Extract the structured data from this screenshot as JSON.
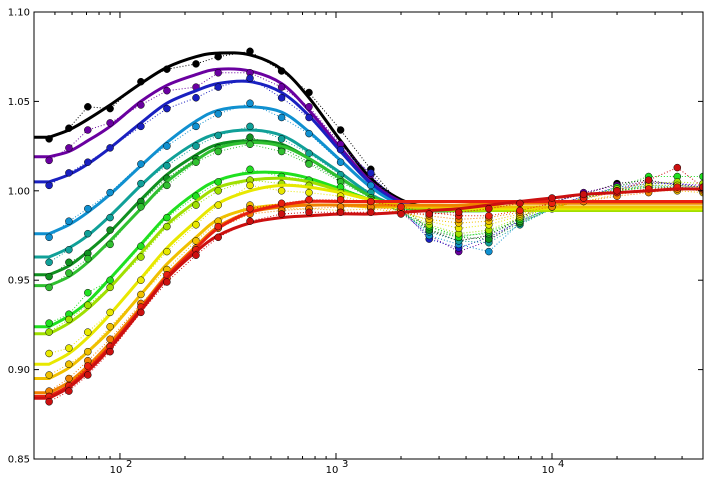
{
  "chart_data": {
    "type": "line",
    "title": "",
    "xlabel": "",
    "ylabel": "",
    "xscale": "log",
    "xlim": [
      40,
      50000
    ],
    "ylim": [
      0.85,
      1.1
    ],
    "grid": false,
    "legend": "none",
    "x_ticks": [
      {
        "value": 100,
        "base": "10",
        "exp": "2"
      },
      {
        "value": 1000,
        "base": "10",
        "exp": "3"
      },
      {
        "value": 10000,
        "base": "10",
        "exp": "4"
      }
    ],
    "y_ticks": [
      {
        "value": 0.85,
        "label": "0.85"
      },
      {
        "value": 0.9,
        "label": "0.90"
      },
      {
        "value": 0.95,
        "label": "0.95"
      },
      {
        "value": 1.0,
        "label": "1.00"
      },
      {
        "value": 1.05,
        "label": "1.05"
      },
      {
        "value": 1.1,
        "label": "1.10"
      }
    ],
    "sample_x": [
      47,
      58,
      71,
      90,
      125,
      165,
      225,
      285,
      400,
      560,
      750,
      1050,
      1450,
      2000,
      2700,
      3700,
      5100,
      7100,
      10000,
      14000,
      20000,
      28000,
      38000,
      50000
    ],
    "series": [
      {
        "color": "#000000",
        "fit": [
          1.03,
          1.034,
          1.04,
          1.048,
          1.06,
          1.069,
          1.075,
          1.077,
          1.076,
          1.068,
          1.052,
          1.028,
          1.007,
          0.995,
          0.991,
          0.99,
          0.99,
          0.99,
          0.99,
          0.99,
          0.99,
          0.99,
          0.99,
          0.99
        ],
        "points": [
          1.029,
          1.035,
          1.047,
          1.046,
          1.061,
          1.068,
          1.071,
          1.075,
          1.078,
          1.067,
          1.055,
          1.034,
          1.012,
          0.992,
          0.978,
          0.972,
          0.975,
          0.985,
          0.994,
          0.998,
          1.004,
          1.006,
          1.003,
          1.002
        ]
      },
      {
        "color": "#6a00a0",
        "fit": [
          1.019,
          1.022,
          1.028,
          1.036,
          1.05,
          1.059,
          1.065,
          1.068,
          1.067,
          1.06,
          1.045,
          1.024,
          1.005,
          0.994,
          0.99,
          0.989,
          0.989,
          0.989,
          0.989,
          0.989,
          0.989,
          0.989,
          0.989,
          0.989
        ],
        "points": [
          1.017,
          1.024,
          1.034,
          1.038,
          1.048,
          1.056,
          1.058,
          1.066,
          1.066,
          1.058,
          1.047,
          1.026,
          1.009,
          0.988,
          0.975,
          0.966,
          0.972,
          0.984,
          0.993,
          0.999,
          1.003,
          1.005,
          1.004,
          1.003
        ]
      },
      {
        "color": "#1a20c0",
        "fit": [
          1.005,
          1.009,
          1.015,
          1.024,
          1.038,
          1.049,
          1.056,
          1.06,
          1.061,
          1.055,
          1.042,
          1.022,
          1.004,
          0.993,
          0.99,
          0.989,
          0.989,
          0.989,
          0.989,
          0.989,
          0.989,
          0.989,
          0.989,
          0.989
        ],
        "points": [
          1.003,
          1.01,
          1.016,
          1.024,
          1.036,
          1.046,
          1.052,
          1.058,
          1.063,
          1.052,
          1.041,
          1.023,
          1.01,
          0.99,
          0.973,
          0.968,
          0.974,
          0.983,
          0.991,
          0.997,
          1.002,
          1.004,
          1.004,
          1.002
        ]
      },
      {
        "color": "#1090d0",
        "fit": [
          0.976,
          0.981,
          0.988,
          0.998,
          1.014,
          1.027,
          1.039,
          1.045,
          1.047,
          1.044,
          1.033,
          1.017,
          1.002,
          0.992,
          0.99,
          0.989,
          0.989,
          0.989,
          0.989,
          0.989,
          0.989,
          0.989,
          0.989,
          0.989
        ],
        "points": [
          0.974,
          0.983,
          0.99,
          0.999,
          1.015,
          1.025,
          1.036,
          1.043,
          1.049,
          1.041,
          1.032,
          1.016,
          1.003,
          0.99,
          0.975,
          0.97,
          0.966,
          0.982,
          0.99,
          0.997,
          1.001,
          1.003,
          1.003,
          1.001
        ]
      },
      {
        "color": "#10a098",
        "fit": [
          0.963,
          0.968,
          0.975,
          0.986,
          1.003,
          1.016,
          1.027,
          1.032,
          1.034,
          1.031,
          1.022,
          1.01,
          0.998,
          0.991,
          0.989,
          0.989,
          0.989,
          0.989,
          0.989,
          0.989,
          0.989,
          0.989,
          0.989,
          0.989
        ],
        "points": [
          0.96,
          0.967,
          0.976,
          0.985,
          1.004,
          1.014,
          1.025,
          1.031,
          1.036,
          1.029,
          1.021,
          1.009,
          0.999,
          0.988,
          0.977,
          0.972,
          0.971,
          0.981,
          0.99,
          0.996,
          1.0,
          1.003,
          1.002,
          1.001
        ]
      },
      {
        "color": "#109020",
        "fit": [
          0.953,
          0.958,
          0.966,
          0.977,
          0.995,
          1.009,
          1.02,
          1.026,
          1.028,
          1.026,
          1.018,
          1.007,
          0.997,
          0.991,
          0.989,
          0.989,
          0.989,
          0.989,
          0.989,
          0.989,
          0.989,
          0.989,
          0.989,
          0.989
        ],
        "points": [
          0.952,
          0.96,
          0.965,
          0.978,
          0.994,
          1.007,
          1.018,
          1.024,
          1.03,
          1.024,
          1.016,
          1.006,
          0.996,
          0.988,
          0.978,
          0.974,
          0.973,
          0.982,
          0.99,
          0.996,
          1.0,
          1.002,
          1.002,
          1.001
        ]
      },
      {
        "color": "#30c030",
        "fit": [
          0.947,
          0.952,
          0.96,
          0.972,
          0.99,
          1.005,
          1.017,
          1.024,
          1.027,
          1.025,
          1.018,
          1.007,
          0.997,
          0.991,
          0.989,
          0.989,
          0.989,
          0.989,
          0.989,
          0.989,
          0.989,
          0.989,
          0.989,
          0.989
        ],
        "points": [
          0.946,
          0.954,
          0.962,
          0.97,
          0.991,
          1.003,
          1.016,
          1.022,
          1.026,
          1.022,
          1.015,
          1.005,
          0.996,
          0.988,
          0.98,
          0.975,
          0.976,
          0.983,
          0.99,
          0.996,
          1.0,
          1.002,
          1.002,
          1.0
        ]
      },
      {
        "color": "#20e020",
        "fit": [
          0.924,
          0.93,
          0.938,
          0.951,
          0.97,
          0.986,
          0.999,
          1.006,
          1.01,
          1.01,
          1.007,
          1.001,
          0.995,
          0.991,
          0.99,
          0.989,
          0.989,
          0.989,
          0.989,
          0.989,
          0.989,
          0.989,
          0.989,
          0.989
        ],
        "points": [
          0.926,
          0.931,
          0.943,
          0.95,
          0.969,
          0.985,
          0.997,
          1.005,
          1.012,
          1.008,
          1.006,
          1.002,
          0.995,
          0.988,
          0.98,
          0.974,
          0.977,
          0.984,
          0.99,
          0.996,
          1.002,
          1.008,
          1.008,
          1.008
        ]
      },
      {
        "color": "#a0e000",
        "fit": [
          0.92,
          0.926,
          0.934,
          0.946,
          0.965,
          0.981,
          0.994,
          1.002,
          1.006,
          1.007,
          1.005,
          1.0,
          0.995,
          0.991,
          0.99,
          0.989,
          0.989,
          0.989,
          0.989,
          0.989,
          0.989,
          0.989,
          0.989,
          0.989
        ],
        "points": [
          0.921,
          0.928,
          0.936,
          0.946,
          0.963,
          0.98,
          0.992,
          1.0,
          1.006,
          1.004,
          1.003,
          0.999,
          0.994,
          0.989,
          0.981,
          0.976,
          0.978,
          0.985,
          0.991,
          0.996,
          1.001,
          1.004,
          1.005,
          1.004
        ]
      },
      {
        "color": "#e8e800",
        "fit": [
          0.903,
          0.909,
          0.918,
          0.931,
          0.951,
          0.968,
          0.983,
          0.993,
          1.0,
          1.003,
          1.002,
          0.999,
          0.995,
          0.992,
          0.991,
          0.99,
          0.99,
          0.99,
          0.99,
          0.99,
          0.99,
          0.99,
          0.99,
          0.99
        ],
        "points": [
          0.909,
          0.912,
          0.921,
          0.932,
          0.95,
          0.966,
          0.981,
          0.992,
          1.003,
          1.0,
          0.999,
          0.997,
          0.993,
          0.989,
          0.983,
          0.979,
          0.981,
          0.986,
          0.991,
          0.995,
          1.0,
          1.003,
          1.003,
          1.002
        ]
      },
      {
        "color": "#f0c000",
        "fit": [
          0.895,
          0.901,
          0.91,
          0.922,
          0.942,
          0.959,
          0.974,
          0.984,
          0.99,
          0.992,
          0.992,
          0.992,
          0.991,
          0.991,
          0.991,
          0.991,
          0.991,
          0.991,
          0.991,
          0.991,
          0.991,
          0.991,
          0.991,
          0.991
        ],
        "points": [
          0.897,
          0.903,
          0.91,
          0.924,
          0.942,
          0.956,
          0.972,
          0.983,
          0.992,
          0.99,
          0.99,
          0.989,
          0.99,
          0.988,
          0.984,
          0.982,
          0.983,
          0.987,
          0.991,
          0.994,
          0.998,
          1.0,
          1.0,
          0.999
        ]
      },
      {
        "color": "#f08000",
        "fit": [
          0.887,
          0.893,
          0.902,
          0.915,
          0.935,
          0.953,
          0.969,
          0.98,
          0.988,
          0.991,
          0.992,
          0.992,
          0.992,
          0.992,
          0.992,
          0.992,
          0.993,
          0.993,
          0.993,
          0.993,
          0.993,
          0.993,
          0.993,
          0.993
        ],
        "points": [
          0.888,
          0.895,
          0.905,
          0.917,
          0.937,
          0.951,
          0.968,
          0.979,
          0.987,
          0.989,
          0.99,
          0.991,
          0.991,
          0.989,
          0.986,
          0.984,
          0.985,
          0.988,
          0.991,
          0.994,
          0.997,
          0.999,
          1.001,
          1.0
        ]
      },
      {
        "color": "#e82010",
        "fit": [
          0.885,
          0.891,
          0.9,
          0.913,
          0.934,
          0.952,
          0.968,
          0.979,
          0.988,
          0.992,
          0.994,
          0.994,
          0.994,
          0.994,
          0.994,
          0.994,
          0.994,
          0.994,
          0.994,
          0.994,
          0.994,
          0.994,
          0.994,
          0.994
        ],
        "points": [
          0.885,
          0.891,
          0.902,
          0.913,
          0.935,
          0.953,
          0.967,
          0.98,
          0.99,
          0.993,
          0.995,
          0.995,
          0.994,
          0.991,
          0.988,
          0.986,
          0.986,
          0.989,
          0.993,
          0.996,
          0.999,
          1.001,
          1.002,
          1.001
        ]
      },
      {
        "color": "#cc1010",
        "fit": [
          0.884,
          0.89,
          0.899,
          0.912,
          0.933,
          0.951,
          0.966,
          0.975,
          0.982,
          0.985,
          0.986,
          0.987,
          0.987,
          0.988,
          0.989,
          0.99,
          0.992,
          0.994,
          0.996,
          0.998,
          0.999,
          1.0,
          1.001,
          1.001
        ],
        "points": [
          0.882,
          0.888,
          0.897,
          0.91,
          0.932,
          0.949,
          0.964,
          0.974,
          0.983,
          0.987,
          0.988,
          0.988,
          0.988,
          0.987,
          0.987,
          0.988,
          0.99,
          0.993,
          0.996,
          0.998,
          1.0,
          1.006,
          1.013,
          1.002
        ]
      }
    ]
  }
}
